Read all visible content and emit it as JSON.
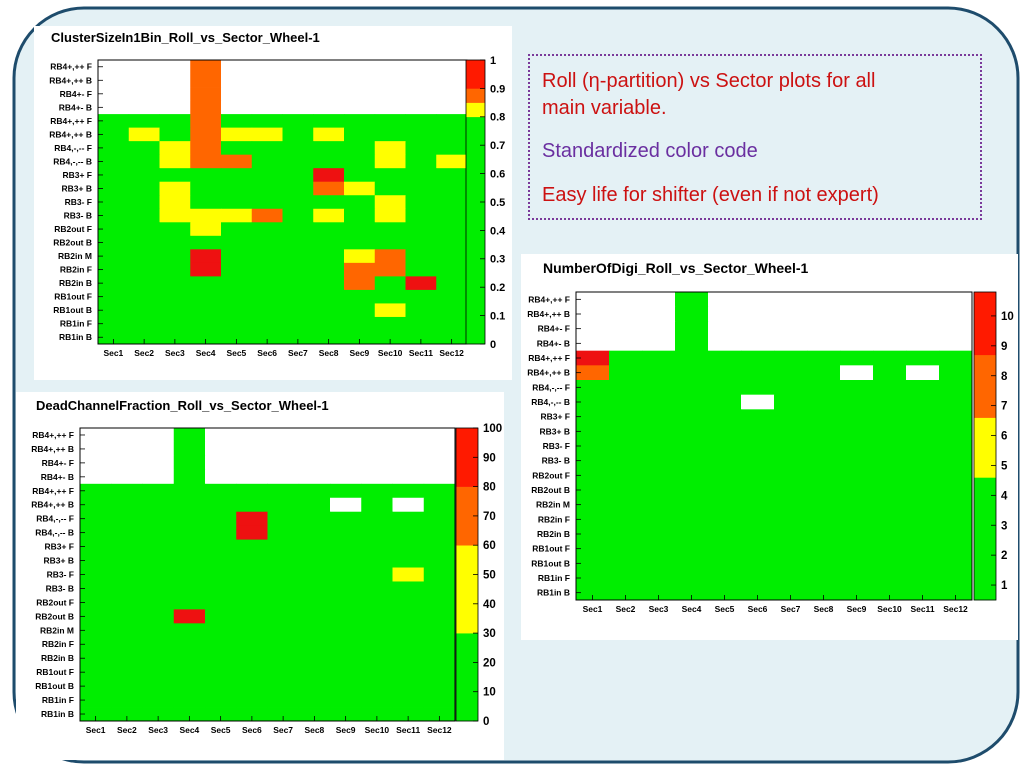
{
  "slide": {
    "notes": [
      {
        "text": "Roll (η-partition) vs Sector plots for all",
        "color": "#cc1111"
      },
      {
        "text": "main variable.",
        "color": "#cc1111"
      },
      {
        "text": "Standardized color code",
        "color": "#6a2fa0"
      },
      {
        "text": "Easy life for shifter (even if not expert)",
        "color": "#cc1111"
      }
    ]
  },
  "chart_data": [
    {
      "type": "heatmap",
      "title": "ClusterSizeIn1Bin_Roll_vs_Sector_Wheel-1",
      "x_categories": [
        "Sec1",
        "Sec2",
        "Sec3",
        "Sec4",
        "Sec5",
        "Sec6",
        "Sec7",
        "Sec8",
        "Sec9",
        "Sec10",
        "Sec11",
        "Sec12"
      ],
      "y_categories": [
        "RB4+,++ F",
        "RB4+,++ B",
        "RB4+- F",
        "RB4+- B",
        "RB4+,++ F",
        "RB4+,++ B",
        "RB4,-,-- F",
        "RB4,-,-- B",
        "RB3+ F",
        "RB3+ B",
        "RB3- F",
        "RB3- B",
        "RB2out F",
        "RB2out B",
        "RB2in M",
        "RB2in F",
        "RB2in B",
        "RB1out F",
        "RB1out B",
        "RB1in F",
        "RB1in B"
      ],
      "colorbar": {
        "ticks": [
          "0",
          "0.1",
          "0.2",
          "0.3",
          "0.4",
          "0.5",
          "0.6",
          "0.7",
          "0.8",
          "0.9",
          "1"
        ],
        "range": [
          0,
          1
        ],
        "bands": [
          {
            "from": 0,
            "to": 0.8,
            "color": "#00ee00"
          },
          {
            "from": 0.8,
            "to": 0.85,
            "color": "#ffff00"
          },
          {
            "from": 0.85,
            "to": 0.9,
            "color": "#ff6600"
          },
          {
            "from": 0.9,
            "to": 1.0,
            "color": "#ff1a00"
          }
        ]
      },
      "color_keys": {
        "e": "#ffffff",
        "G": "#00ee00",
        "Y": "#ffff00",
        "O": "#ff6600",
        "R": "#ee1111"
      },
      "rows": [
        "eeeOeeeeeeee",
        "eeeOeeeeeeee",
        "eeeOeeeeeeee",
        "eeeOeeeeeeee",
        "GGGOGGGGGGGG",
        "GYGOYYGYGGGG",
        "GGYOGGGGGYGG",
        "GGYOOGGGGYGY",
        "GGGGGGGRGGGG",
        "GGYGGGGOYGGG",
        "GGYGGGGGGYGG",
        "GGYYYOGYGYGG",
        "GGGYGGGGGGGG",
        "GGGGGGGGGGGG",
        "GGGRGGGGYOGG",
        "GGGRGGGGOOGG",
        "GGGGGGGGOGRG",
        "GGGGGGGGGGGG",
        "GGGGGGGGGYGG",
        "GGGGGGGGGGGG",
        "GGGGGGGGGGGG"
      ]
    },
    {
      "type": "heatmap",
      "title": "DeadChannelFraction_Roll_vs_Sector_Wheel-1",
      "x_categories": [
        "Sec1",
        "Sec2",
        "Sec3",
        "Sec4",
        "Sec5",
        "Sec6",
        "Sec7",
        "Sec8",
        "Sec9",
        "Sec10",
        "Sec11",
        "Sec12"
      ],
      "y_categories": [
        "RB4+,++ F",
        "RB4+,++ B",
        "RB4+- F",
        "RB4+- B",
        "RB4+,++ F",
        "RB4+,++ B",
        "RB4,-,-- F",
        "RB4,-,-- B",
        "RB3+ F",
        "RB3+ B",
        "RB3- F",
        "RB3- B",
        "RB2out F",
        "RB2out B",
        "RB2in M",
        "RB2in F",
        "RB2in B",
        "RB1out F",
        "RB1out B",
        "RB1in F",
        "RB1in B"
      ],
      "colorbar": {
        "ticks": [
          "0",
          "10",
          "20",
          "30",
          "40",
          "50",
          "60",
          "70",
          "80",
          "90",
          "100"
        ],
        "range": [
          0,
          100
        ],
        "bands": [
          {
            "from": 0,
            "to": 30,
            "color": "#00ee00"
          },
          {
            "from": 30,
            "to": 60,
            "color": "#ffff00"
          },
          {
            "from": 60,
            "to": 80,
            "color": "#ff6600"
          },
          {
            "from": 80,
            "to": 100,
            "color": "#ff1a00"
          }
        ]
      },
      "color_keys": {
        "e": "#ffffff",
        "G": "#00ee00",
        "Y": "#ffff00",
        "O": "#ff6600",
        "R": "#ee1111"
      },
      "rows": [
        "eeeGeeeeeeee",
        "eeeGeeeeeeee",
        "eeeGeeeeeeee",
        "eeeGeeeeeeee",
        "GGGGGGGGGGGG",
        "GGGGGGGGeGeG",
        "GGGGGRGGGGGG",
        "GGGGGRGGGGGG",
        "GGGGGGGGGGGG",
        "GGGGGGGGGGGG",
        "GGGGGGGGGGYG",
        "GGGGGGGGGGGG",
        "GGGGGGGGGGGG",
        "GGGRGGGGGGGG",
        "GGGGGGGGGGGG",
        "GGGGGGGGGGGG",
        "GGGGGGGGGGGG",
        "GGGGGGGGGGGG",
        "GGGGGGGGGGGG",
        "GGGGGGGGGGGG",
        "GGGGGGGGGGGG"
      ]
    },
    {
      "type": "heatmap",
      "title": "NumberOfDigi_Roll_vs_Sector_Wheel-1",
      "x_categories": [
        "Sec1",
        "Sec2",
        "Sec3",
        "Sec4",
        "Sec5",
        "Sec6",
        "Sec7",
        "Sec8",
        "Sec9",
        "Sec10",
        "Sec11",
        "Sec12"
      ],
      "y_categories": [
        "RB4+,++ F",
        "RB4+,++ B",
        "RB4+- F",
        "RB4+- B",
        "RB4+,++ F",
        "RB4+,++ B",
        "RB4,-,-- F",
        "RB4,-,-- B",
        "RB3+ F",
        "RB3+ B",
        "RB3- F",
        "RB3- B",
        "RB2out F",
        "RB2out B",
        "RB2in M",
        "RB2in F",
        "RB2in B",
        "RB1out F",
        "RB1out B",
        "RB1in F",
        "RB1in B"
      ],
      "colorbar": {
        "ticks": [
          "1",
          "2",
          "3",
          "4",
          "5",
          "6",
          "7",
          "8",
          "9",
          "10"
        ],
        "range": [
          0.5,
          10.8
        ],
        "bands": [
          {
            "from": 0.5,
            "to": 4.6,
            "color": "#00ee00"
          },
          {
            "from": 4.6,
            "to": 6.6,
            "color": "#ffff00"
          },
          {
            "from": 6.6,
            "to": 8.7,
            "color": "#ff6600"
          },
          {
            "from": 8.7,
            "to": 10.8,
            "color": "#ff1a00"
          }
        ]
      },
      "color_keys": {
        "e": "#ffffff",
        "G": "#00ee00",
        "Y": "#ffff00",
        "O": "#ff6600",
        "R": "#ee1111"
      },
      "rows": [
        "eeeGeeeeeeee",
        "eeeGeeeeeeee",
        "eeeGeeeeeeee",
        "eeeGeeeeeeee",
        "RGGGGGGGGGGG",
        "OGGGGGGGeGeG",
        "GGGGGGGGGGGG",
        "GGGGGeGGGGGG",
        "GGGGGGGGGGGG",
        "GGGGGGGGGGGG",
        "GGGGGGGGGGGG",
        "GGGGGGGGGGGG",
        "GGGGGGGGGGGG",
        "GGGGGGGGGGGG",
        "GGGGGGGGGGGG",
        "GGGGGGGGGGGG",
        "GGGGGGGGGGGG",
        "GGGGGGGGGGGG",
        "GGGGGGGGGGGG",
        "GGGGGGGGGGGG",
        "GGGGGGGGGGGG"
      ]
    }
  ]
}
